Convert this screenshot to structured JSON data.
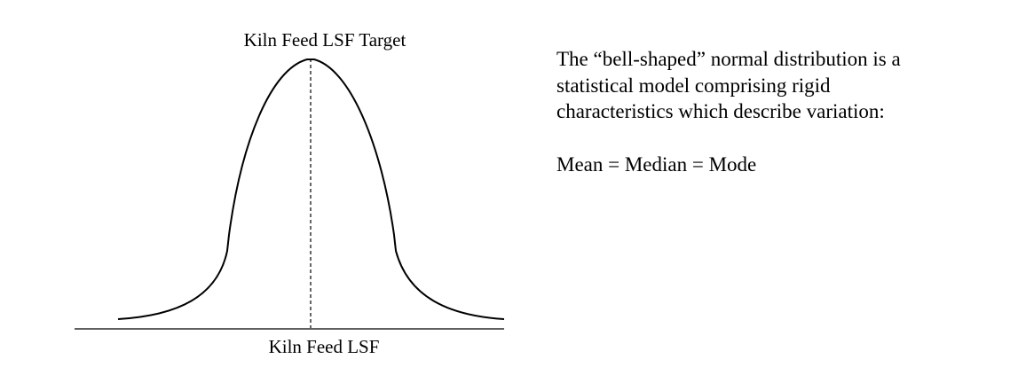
{
  "diagram": {
    "top_label": "Kiln Feed LSF Target",
    "bottom_label": "Kiln Feed LSF",
    "line_color": "#000000"
  },
  "description": {
    "lines": [
      "The “bell-shaped” normal distribution is a",
      "statistical model comprising rigid",
      "characteristics which describe variation:"
    ],
    "equation": "Mean = Median = Mode"
  }
}
